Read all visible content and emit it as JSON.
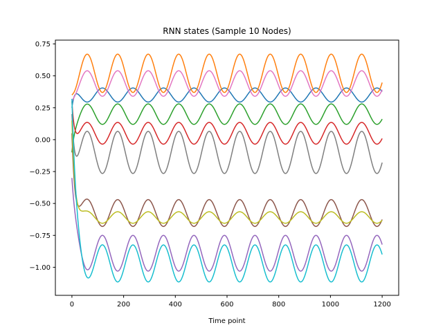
{
  "chart_data": {
    "type": "line",
    "title": "RNN states (Sample 10 Nodes)",
    "xlabel": "Time point",
    "ylabel": "",
    "xlim": [
      -64,
      1264
    ],
    "ylim": [
      -1.22,
      0.78
    ],
    "x_ticks": [
      0,
      200,
      400,
      600,
      800,
      1000,
      1200
    ],
    "x_tick_labels": [
      "0",
      "200",
      "400",
      "600",
      "800",
      "1000",
      "1200"
    ],
    "y_ticks": [
      0.75,
      0.5,
      0.25,
      0.0,
      -0.25,
      -0.5,
      -0.75,
      -1.0
    ],
    "y_tick_labels": [
      "0.75",
      "0.50",
      "0.25",
      "0.00",
      "−0.25",
      "−0.50",
      "−0.75",
      "−1.00"
    ],
    "grid": false,
    "legend": "none",
    "period": 118,
    "x_max": 1200,
    "series": [
      {
        "color": "#1f77b4",
        "start": 0.25,
        "center": 0.35,
        "amp": 0.055,
        "phase": 0.5,
        "tau": 10
      },
      {
        "color": "#ff7f0e",
        "start": 0.35,
        "center": 0.52,
        "amp": 0.15,
        "phase": 0.0,
        "tau": 8
      },
      {
        "color": "#2ca02c",
        "start": -0.1,
        "center": 0.2,
        "amp": 0.08,
        "phase": 0.0,
        "tau": 10
      },
      {
        "color": "#d62728",
        "start": 0.3,
        "center": 0.05,
        "amp": 0.085,
        "phase": 0.0,
        "tau": 10
      },
      {
        "color": "#9467bd",
        "start": -0.3,
        "center": -0.89,
        "amp": 0.14,
        "phase": 0.5,
        "tau": 14
      },
      {
        "color": "#8c564b",
        "start": 0.05,
        "center": -0.575,
        "amp": 0.105,
        "phase": 0.0,
        "tau": 12
      },
      {
        "color": "#e377c2",
        "start": 0.3,
        "center": 0.44,
        "amp": 0.1,
        "phase": 0.0,
        "tau": 8
      },
      {
        "color": "#7f7f7f",
        "start": 0.2,
        "center": -0.1,
        "amp": 0.165,
        "phase": 0.0,
        "tau": 10
      },
      {
        "color": "#bcbd22",
        "start": 0.15,
        "center": -0.61,
        "amp": 0.045,
        "phase": 0.0,
        "tau": 12
      },
      {
        "color": "#17becf",
        "start": 0.32,
        "center": -0.97,
        "amp": 0.145,
        "phase": 0.5,
        "tau": 16
      }
    ]
  }
}
